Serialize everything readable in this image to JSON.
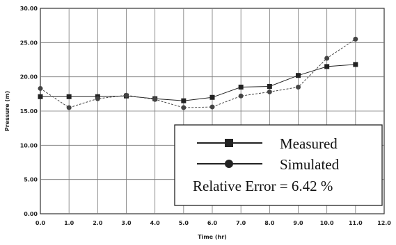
{
  "chart_data": {
    "type": "line",
    "xlabel": "Time (hr)",
    "ylabel": "Pressure (m)",
    "xlim": [
      0,
      12
    ],
    "ylim": [
      0,
      30
    ],
    "x_ticks": [
      "0.0",
      "1.0",
      "2.0",
      "3.0",
      "4.0",
      "5.0",
      "6.0",
      "7.0",
      "8.0",
      "9.0",
      "10.0",
      "11.0",
      "12.0"
    ],
    "y_ticks": [
      "0.00",
      "5.00",
      "10.00",
      "15.00",
      "20.00",
      "25.00",
      "30.00"
    ],
    "grid": true,
    "legend_position": "bottom-right",
    "series": [
      {
        "name": "Measured",
        "marker": "square",
        "color": "#222222",
        "x": [
          0,
          1,
          2,
          3,
          4,
          5,
          6,
          7,
          8,
          9,
          10,
          11
        ],
        "y": [
          17.1,
          17.1,
          17.1,
          17.2,
          16.8,
          16.5,
          17.0,
          18.5,
          18.6,
          20.2,
          21.5,
          21.8
        ]
      },
      {
        "name": "Simulated",
        "marker": "circle",
        "color": "#444444",
        "x": [
          0,
          1,
          2,
          3,
          4,
          5,
          6,
          7,
          8,
          9,
          10,
          11
        ],
        "y": [
          18.3,
          15.5,
          16.8,
          17.3,
          16.7,
          15.5,
          15.6,
          17.2,
          17.8,
          18.5,
          22.7,
          25.5
        ]
      }
    ],
    "annotation": "Relative Error = 6.42 %"
  }
}
